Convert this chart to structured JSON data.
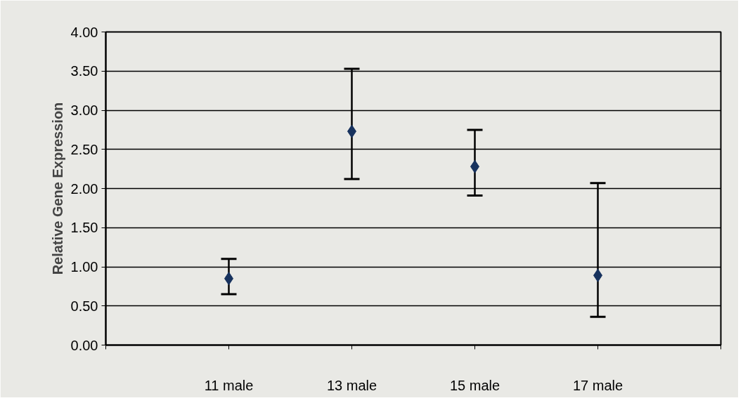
{
  "chart_data": {
    "type": "scatter",
    "ylabel": "Relative Gene Expression",
    "categories": [
      "11 male",
      "13 male",
      "15 male",
      "17 male"
    ],
    "values": [
      0.85,
      2.73,
      2.28,
      0.89
    ],
    "errors": [
      [
        0.65,
        1.1
      ],
      [
        2.12,
        3.53
      ],
      [
        1.91,
        2.75
      ],
      [
        0.36,
        2.07
      ]
    ],
    "color": "#17325e",
    "marker": "diamond",
    "ylim": [
      0,
      4
    ],
    "yticks": [
      {
        "value": 0,
        "label": "0.00"
      },
      {
        "value": 0.5,
        "label": "0.50"
      },
      {
        "value": 1,
        "label": "1.00"
      },
      {
        "value": 1.5,
        "label": "1.50"
      },
      {
        "value": 2,
        "label": "2.00"
      },
      {
        "value": 2.5,
        "label": "2.50"
      },
      {
        "value": 3,
        "label": "3.00"
      },
      {
        "value": 3.5,
        "label": "3.50"
      },
      {
        "value": 4,
        "label": "4.00"
      }
    ],
    "grid": "y"
  }
}
